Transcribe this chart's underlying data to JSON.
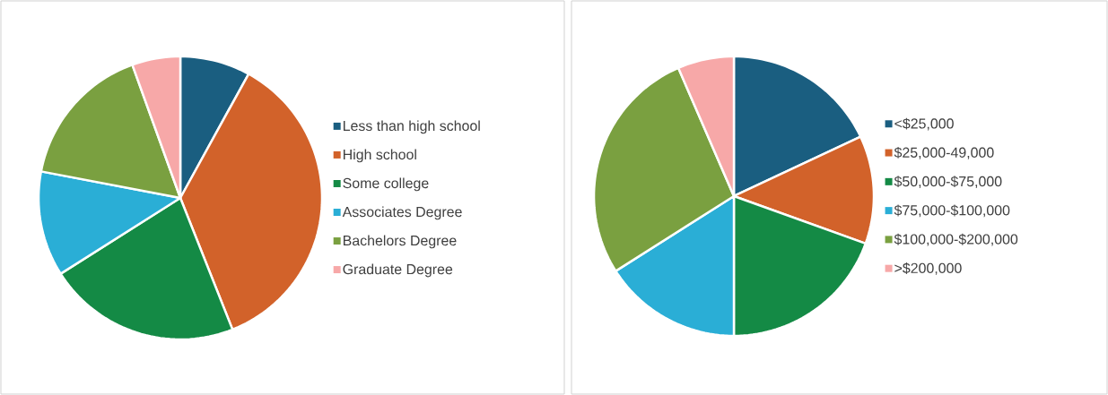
{
  "chart_data": [
    {
      "type": "pie",
      "categories": [
        "Less than high school",
        "High school",
        "Some college",
        "Associates Degree",
        "Bachelors Degree",
        "Graduate Degree"
      ],
      "values": [
        8,
        36,
        22,
        12,
        16.5,
        5.5
      ],
      "colors": [
        "#1a5e80",
        "#d2622a",
        "#148a45",
        "#2aaed6",
        "#7aa040",
        "#f7a8a8"
      ],
      "legend": "right"
    },
    {
      "type": "pie",
      "categories": [
        "<$25,000",
        "$25,000-49,000",
        "$50,000-$75,000",
        "$75,000-$100,000",
        "$100,000-$200,000",
        ">$200,000"
      ],
      "values": [
        18,
        12.5,
        19.5,
        16,
        27.5,
        6.5
      ],
      "colors": [
        "#1a5e80",
        "#d2622a",
        "#148a45",
        "#2aaed6",
        "#7aa040",
        "#f7a8a8"
      ],
      "legend": "right"
    }
  ]
}
